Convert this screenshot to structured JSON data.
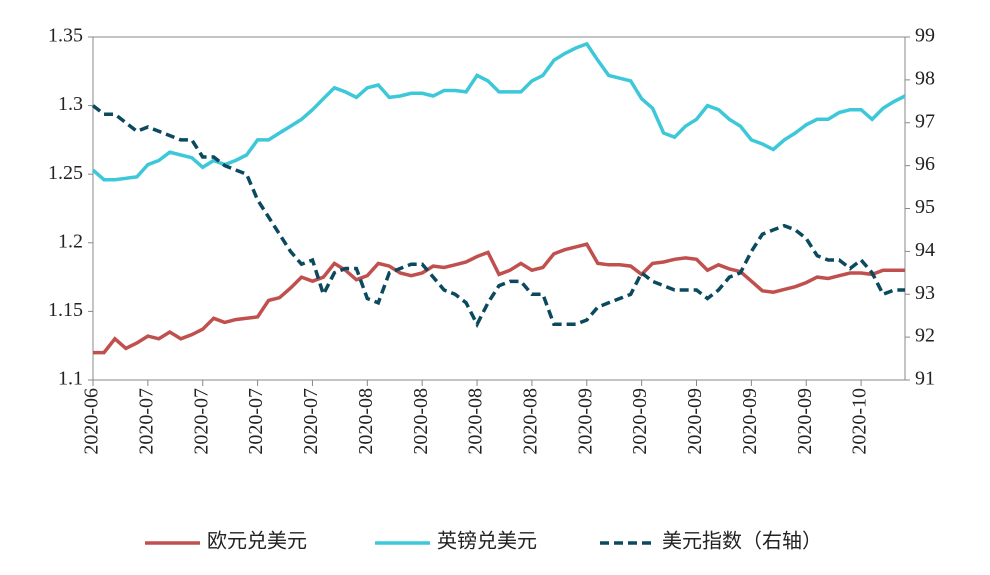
{
  "chart_data": {
    "type": "line",
    "categories": [
      "2020-06",
      null,
      null,
      null,
      null,
      "2020-07",
      null,
      null,
      null,
      null,
      "2020-07",
      null,
      null,
      null,
      null,
      "2020-07",
      null,
      null,
      null,
      null,
      "2020-07",
      null,
      null,
      null,
      null,
      "2020-08",
      null,
      null,
      null,
      null,
      "2020-08",
      null,
      null,
      null,
      null,
      "2020-08",
      null,
      null,
      null,
      null,
      "2020-08",
      null,
      null,
      null,
      null,
      "2020-09",
      null,
      null,
      null,
      null,
      "2020-09",
      null,
      null,
      null,
      null,
      "2020-09",
      null,
      null,
      null,
      null,
      "2020-09",
      null,
      null,
      null,
      null,
      "2020-09",
      null,
      null,
      null,
      null,
      "2020-10",
      null,
      null,
      null,
      null
    ],
    "series": [
      {
        "name": "欧元兑美元",
        "color": "#c0504d",
        "dash": false,
        "values": [
          1.12,
          1.12,
          1.13,
          1.123,
          1.127,
          1.132,
          1.13,
          1.135,
          1.13,
          1.133,
          1.137,
          1.145,
          1.142,
          1.144,
          1.145,
          1.146,
          1.158,
          1.16,
          1.167,
          1.175,
          1.172,
          1.175,
          1.185,
          1.18,
          1.173,
          1.176,
          1.185,
          1.183,
          1.178,
          1.176,
          1.178,
          1.183,
          1.182,
          1.184,
          1.186,
          1.19,
          1.193,
          1.177,
          1.18,
          1.185,
          1.18,
          1.182,
          1.192,
          1.195,
          1.197,
          1.199,
          1.185,
          1.184,
          1.184,
          1.183,
          1.177,
          1.185,
          1.186,
          1.188,
          1.189,
          1.188,
          1.18,
          1.184,
          1.181,
          1.179,
          1.172,
          1.165,
          1.164,
          1.166,
          1.168,
          1.171,
          1.175,
          1.174,
          1.176,
          1.178,
          1.178,
          1.177,
          1.18,
          1.18,
          1.18
        ]
      },
      {
        "name": "英镑兑美元",
        "color": "#3cc8d8",
        "dash": false,
        "values": [
          1.253,
          1.246,
          1.246,
          1.247,
          1.248,
          1.257,
          1.26,
          1.266,
          1.264,
          1.262,
          1.255,
          1.26,
          1.257,
          1.26,
          1.264,
          1.275,
          1.275,
          1.28,
          1.285,
          1.29,
          1.297,
          1.305,
          1.313,
          1.31,
          1.306,
          1.313,
          1.315,
          1.306,
          1.307,
          1.309,
          1.309,
          1.307,
          1.311,
          1.311,
          1.31,
          1.322,
          1.318,
          1.31,
          1.31,
          1.31,
          1.318,
          1.322,
          1.333,
          1.338,
          1.342,
          1.345,
          1.333,
          1.322,
          1.32,
          1.318,
          1.305,
          1.298,
          1.28,
          1.277,
          1.285,
          1.29,
          1.3,
          1.297,
          1.29,
          1.285,
          1.275,
          1.272,
          1.268,
          1.275,
          1.28,
          1.286,
          1.29,
          1.29,
          1.295,
          1.297,
          1.297,
          1.29,
          1.298,
          1.303,
          1.307
        ]
      },
      {
        "name": "美元指数（右轴）",
        "color": "#0b4a5e",
        "dash": true,
        "axis": "y2",
        "values": [
          97.4,
          97.2,
          97.2,
          97.0,
          96.8,
          96.9,
          96.8,
          96.7,
          96.6,
          96.6,
          96.2,
          96.2,
          96.0,
          95.9,
          95.8,
          95.2,
          94.8,
          94.4,
          94.0,
          93.7,
          93.8,
          93.0,
          93.5,
          93.6,
          93.6,
          92.9,
          92.8,
          93.5,
          93.6,
          93.7,
          93.7,
          93.4,
          93.1,
          93.0,
          92.8,
          92.3,
          92.8,
          93.2,
          93.3,
          93.3,
          93.0,
          93.0,
          92.3,
          92.3,
          92.3,
          92.4,
          92.7,
          92.8,
          92.9,
          93.0,
          93.5,
          93.3,
          93.2,
          93.1,
          93.1,
          93.1,
          92.9,
          93.1,
          93.4,
          93.5,
          94.0,
          94.4,
          94.5,
          94.6,
          94.5,
          94.3,
          93.9,
          93.8,
          93.8,
          93.6,
          93.8,
          93.5,
          93.0,
          93.1,
          93.1
        ]
      }
    ],
    "ylim": [
      1.1,
      1.35
    ],
    "yticks": [
      1.1,
      1.15,
      1.2,
      1.25,
      1.3,
      1.35
    ],
    "y2lim": [
      91,
      99
    ],
    "y2ticks": [
      91,
      92,
      93,
      94,
      95,
      96,
      97,
      98,
      99
    ]
  }
}
